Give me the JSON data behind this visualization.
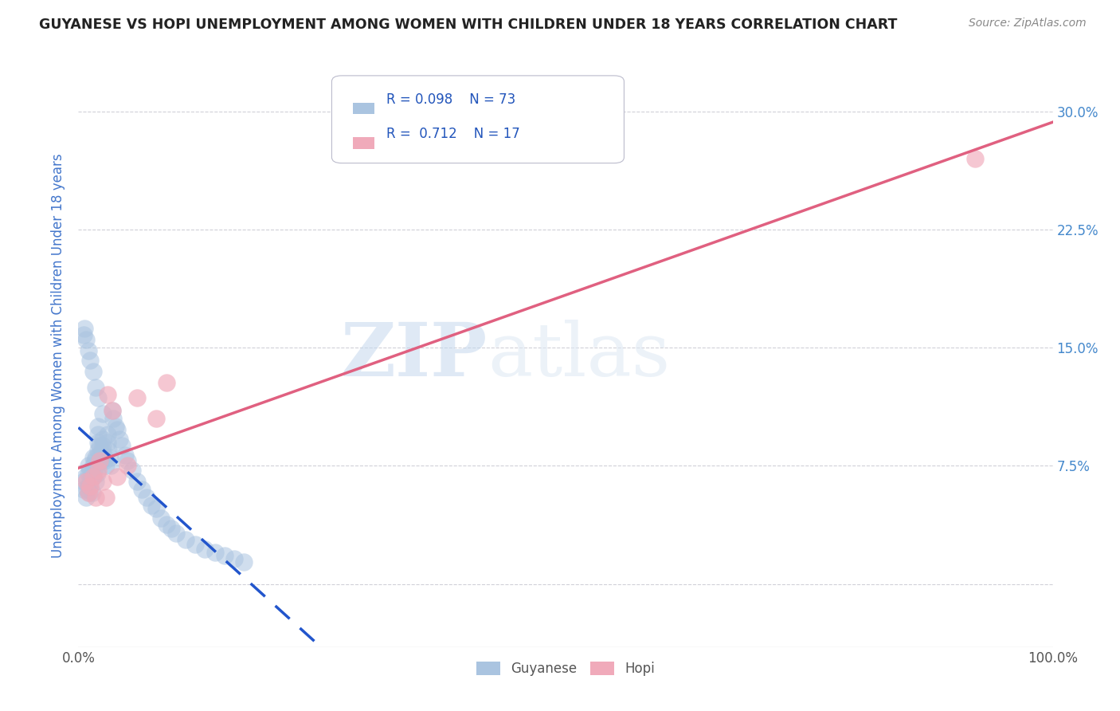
{
  "title": "GUYANESE VS HOPI UNEMPLOYMENT AMONG WOMEN WITH CHILDREN UNDER 18 YEARS CORRELATION CHART",
  "source": "Source: ZipAtlas.com",
  "ylabel": "Unemployment Among Women with Children Under 18 years",
  "xlim": [
    0,
    1.0
  ],
  "ylim": [
    -0.04,
    0.33
  ],
  "xticks": [
    0.0,
    0.1,
    0.2,
    0.3,
    0.4,
    0.5,
    0.6,
    0.7,
    0.8,
    0.9,
    1.0
  ],
  "xticklabels": [
    "0.0%",
    "",
    "",
    "",
    "",
    "",
    "",
    "",
    "",
    "",
    "100.0%"
  ],
  "yticks": [
    0.0,
    0.075,
    0.15,
    0.225,
    0.3
  ],
  "yticklabels": [
    "",
    "7.5%",
    "15.0%",
    "22.5%",
    "30.0%"
  ],
  "background_color": "#ffffff",
  "grid_color": "#d0d0d8",
  "watermark_zip": "ZIP",
  "watermark_atlas": "atlas",
  "guyanese_R": "0.098",
  "guyanese_N": "73",
  "hopi_R": "0.712",
  "hopi_N": "17",
  "guyanese_color": "#aac4e0",
  "hopi_color": "#f0aaba",
  "guyanese_line_color": "#2255cc",
  "hopi_line_color": "#e06080",
  "guyanese_x": [
    0.005,
    0.005,
    0.007,
    0.008,
    0.009,
    0.01,
    0.01,
    0.01,
    0.011,
    0.012,
    0.012,
    0.013,
    0.014,
    0.015,
    0.015,
    0.015,
    0.016,
    0.017,
    0.018,
    0.018,
    0.019,
    0.02,
    0.02,
    0.02,
    0.02,
    0.021,
    0.022,
    0.023,
    0.024,
    0.025,
    0.025,
    0.026,
    0.027,
    0.028,
    0.03,
    0.03,
    0.031,
    0.032,
    0.033,
    0.035,
    0.036,
    0.038,
    0.04,
    0.042,
    0.045,
    0.048,
    0.05,
    0.055,
    0.06,
    0.065,
    0.07,
    0.075,
    0.08,
    0.085,
    0.09,
    0.095,
    0.1,
    0.11,
    0.12,
    0.13,
    0.14,
    0.15,
    0.16,
    0.17,
    0.005,
    0.006,
    0.008,
    0.01,
    0.012,
    0.015,
    0.018,
    0.02,
    0.025
  ],
  "guyanese_y": [
    0.065,
    0.06,
    0.068,
    0.055,
    0.06,
    0.07,
    0.075,
    0.062,
    0.058,
    0.065,
    0.072,
    0.068,
    0.058,
    0.075,
    0.08,
    0.068,
    0.072,
    0.078,
    0.08,
    0.065,
    0.07,
    0.085,
    0.09,
    0.095,
    0.1,
    0.082,
    0.088,
    0.078,
    0.085,
    0.092,
    0.088,
    0.082,
    0.078,
    0.075,
    0.095,
    0.09,
    0.085,
    0.08,
    0.075,
    0.11,
    0.105,
    0.1,
    0.098,
    0.092,
    0.088,
    0.082,
    0.078,
    0.072,
    0.065,
    0.06,
    0.055,
    0.05,
    0.048,
    0.042,
    0.038,
    0.035,
    0.032,
    0.028,
    0.025,
    0.022,
    0.02,
    0.018,
    0.016,
    0.014,
    0.158,
    0.162,
    0.155,
    0.148,
    0.142,
    0.135,
    0.125,
    0.118,
    0.108
  ],
  "hopi_x": [
    0.008,
    0.01,
    0.012,
    0.015,
    0.018,
    0.02,
    0.022,
    0.025,
    0.028,
    0.03,
    0.035,
    0.04,
    0.05,
    0.06,
    0.08,
    0.09,
    0.92
  ],
  "hopi_y": [
    0.065,
    0.058,
    0.062,
    0.068,
    0.055,
    0.072,
    0.078,
    0.065,
    0.055,
    0.12,
    0.11,
    0.068,
    0.075,
    0.118,
    0.105,
    0.128,
    0.27
  ]
}
